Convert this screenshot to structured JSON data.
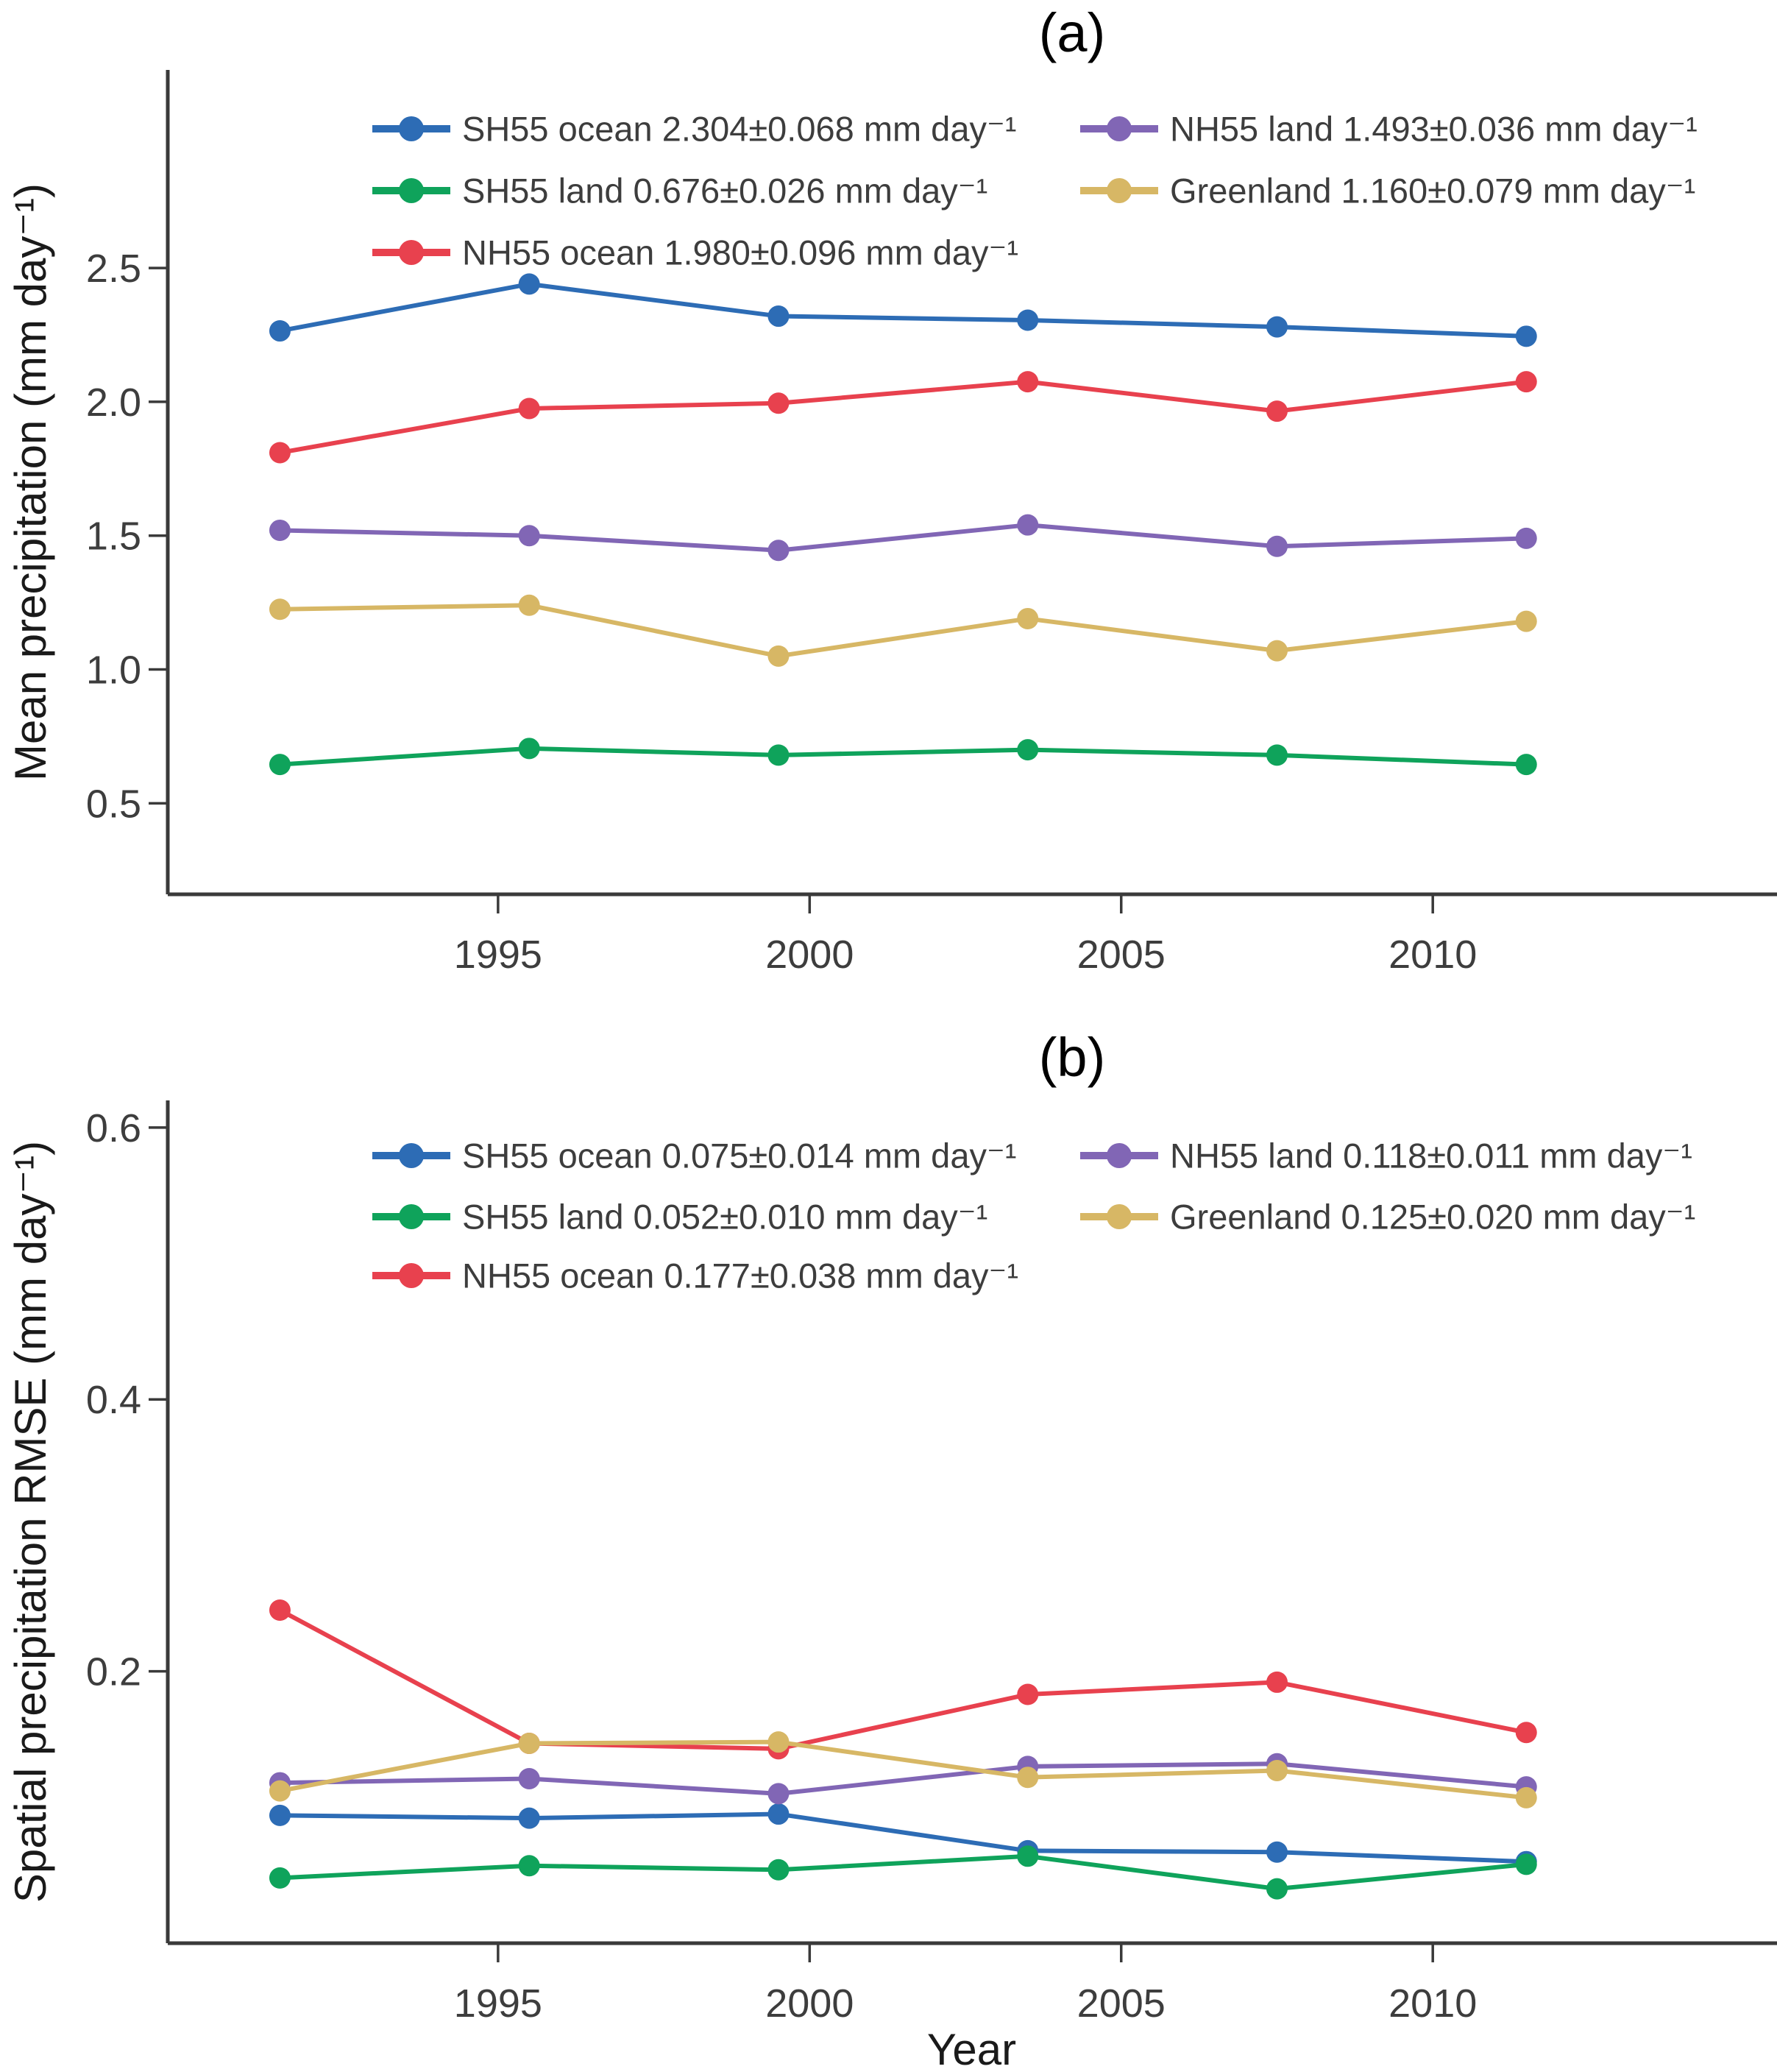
{
  "figure": {
    "background": "#ffffff",
    "axis_color": "#3a3a3a",
    "text_color": "#3d3d3d"
  },
  "chart_data": [
    {
      "id": "a",
      "type": "line",
      "title": "(a)",
      "xlabel": "",
      "ylabel": "Mean precipitation (mm day⁻¹)",
      "grid": false,
      "legend_position": "upper center, two columns",
      "x": [
        1991.5,
        1995.5,
        1999.5,
        2003.5,
        2007.5,
        2011.5
      ],
      "xlim": [
        1989.7,
        2015.5
      ],
      "ylim": [
        0.16,
        3.24
      ],
      "xticks": [
        1995,
        2000,
        2005,
        2010
      ],
      "xtick_labels": [
        "1995",
        "2000",
        "2005",
        "2010"
      ],
      "yticks": [
        0.5,
        1.0,
        1.5,
        2.0,
        2.5
      ],
      "ytick_labels": [
        "0.5",
        "1.0",
        "1.5",
        "2.0",
        "2.5"
      ],
      "series": [
        {
          "name": "SH55 ocean",
          "color": "#2d6cb5",
          "legend_label": "SH55 ocean 2.304±0.068 mm day⁻¹",
          "values": [
            2.265,
            2.44,
            2.32,
            2.305,
            2.28,
            2.245
          ]
        },
        {
          "name": "SH55 land",
          "color": "#0fa35b",
          "legend_label": "SH55 land 0.676±0.026 mm day⁻¹",
          "values": [
            0.645,
            0.705,
            0.68,
            0.7,
            0.68,
            0.645
          ]
        },
        {
          "name": "NH55 ocean",
          "color": "#e8414e",
          "legend_label": "NH55 ocean 1.980±0.096 mm day⁻¹",
          "values": [
            1.81,
            1.975,
            1.995,
            2.075,
            1.965,
            2.075
          ]
        },
        {
          "name": "NH55 land",
          "color": "#8166b5",
          "legend_label": "NH55 land 1.493±0.036 mm day⁻¹",
          "values": [
            1.52,
            1.5,
            1.445,
            1.54,
            1.46,
            1.49
          ]
        },
        {
          "name": "Greenland",
          "color": "#d7b765",
          "legend_label": "Greenland 1.160±0.079 mm day⁻¹",
          "values": [
            1.225,
            1.24,
            1.05,
            1.19,
            1.07,
            1.18
          ]
        }
      ],
      "legend_columns": [
        [
          "SH55 ocean",
          "SH55 land",
          "NH55 ocean"
        ],
        [
          "NH55 land",
          "Greenland"
        ]
      ]
    },
    {
      "id": "b",
      "type": "line",
      "title": "(b)",
      "xlabel": "Year",
      "ylabel": "Spatial precipitation RMSE (mm day⁻¹)",
      "grid": false,
      "legend_position": "upper center, two columns",
      "x": [
        1991.5,
        1995.5,
        1999.5,
        2003.5,
        2007.5,
        2011.5
      ],
      "xlim": [
        1989.7,
        2015.5
      ],
      "ylim": [
        0.0,
        0.62
      ],
      "xticks": [
        1995,
        2000,
        2005,
        2010
      ],
      "xtick_labels": [
        "1995",
        "2000",
        "2005",
        "2010"
      ],
      "yticks": [
        0.2,
        0.4,
        0.6
      ],
      "ytick_labels": [
        "0.2",
        "0.4",
        "0.6"
      ],
      "series": [
        {
          "name": "SH55 ocean",
          "color": "#2d6cb5",
          "legend_label": "SH55 ocean 0.075±0.014 mm day⁻¹",
          "values": [
            0.094,
            0.092,
            0.095,
            0.068,
            0.067,
            0.06
          ]
        },
        {
          "name": "SH55 land",
          "color": "#0fa35b",
          "legend_label": "SH55 land 0.052±0.010 mm day⁻¹",
          "values": [
            0.048,
            0.057,
            0.054,
            0.064,
            0.04,
            0.058
          ]
        },
        {
          "name": "NH55 ocean",
          "color": "#e8414e",
          "legend_label": "NH55 ocean 0.177±0.038 mm day⁻¹",
          "values": [
            0.245,
            0.147,
            0.143,
            0.183,
            0.192,
            0.155
          ]
        },
        {
          "name": "NH55 land",
          "color": "#8166b5",
          "legend_label": "NH55 land 0.118±0.011 mm day⁻¹",
          "values": [
            0.118,
            0.121,
            0.11,
            0.13,
            0.132,
            0.115
          ]
        },
        {
          "name": "Greenland",
          "color": "#d7b765",
          "legend_label": "Greenland 0.125±0.020 mm day⁻¹",
          "values": [
            0.112,
            0.147,
            0.148,
            0.122,
            0.127,
            0.107
          ]
        }
      ],
      "legend_columns": [
        [
          "SH55 ocean",
          "SH55 land",
          "NH55 ocean"
        ],
        [
          "NH55 land",
          "Greenland"
        ]
      ]
    }
  ]
}
